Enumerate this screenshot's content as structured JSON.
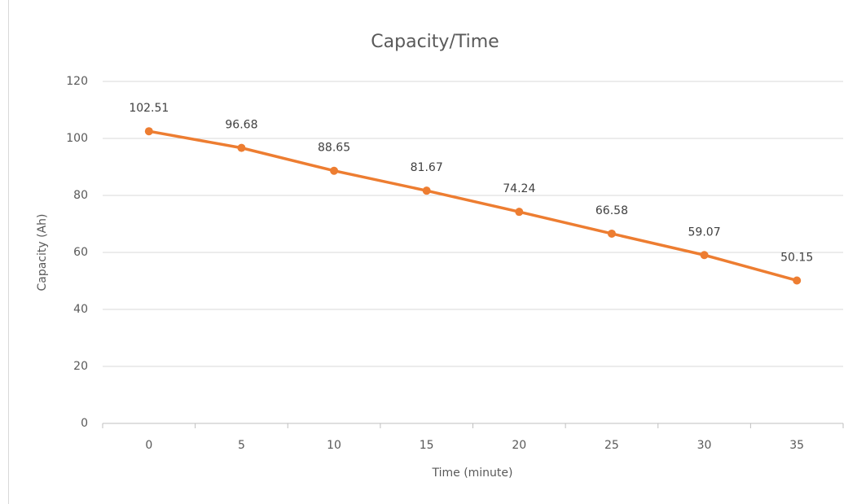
{
  "chart_data": {
    "type": "line",
    "title": "Capacity/Time",
    "x_label": "Time (minute)",
    "y_label": "Capacity (Ah)",
    "categories": [
      "0",
      "5",
      "10",
      "15",
      "20",
      "25",
      "30",
      "35"
    ],
    "series": [
      {
        "name": "Capacity",
        "color": "#ED7D31",
        "values": [
          102.51,
          96.68,
          88.65,
          81.67,
          74.24,
          66.58,
          59.07,
          50.15
        ]
      }
    ],
    "ylim": [
      0,
      120
    ],
    "yticks": [
      0,
      20,
      40,
      60,
      80,
      100,
      120
    ],
    "grid": true,
    "legend": false
  }
}
